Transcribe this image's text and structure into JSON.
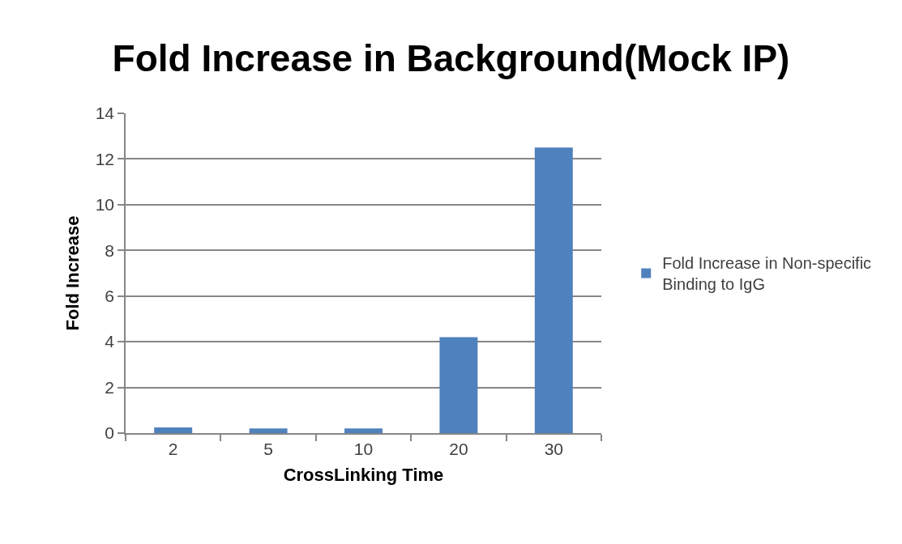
{
  "chart_data": {
    "type": "bar",
    "title": "Fold Increase in Background(Mock IP)",
    "xlabel": "CrossLinking Time",
    "ylabel": "Fold Increase",
    "categories": [
      "2",
      "5",
      "10",
      "20",
      "30"
    ],
    "series": [
      {
        "name": "Fold Increase in Non-specific Binding to IgG",
        "color": "#4f81bd",
        "values": [
          0.25,
          0.2,
          0.2,
          4.2,
          12.5
        ]
      }
    ],
    "ylim": [
      0,
      14
    ],
    "yticks": [
      0,
      2,
      4,
      6,
      8,
      10,
      12,
      14
    ],
    "grid": "y",
    "legend": "right"
  }
}
